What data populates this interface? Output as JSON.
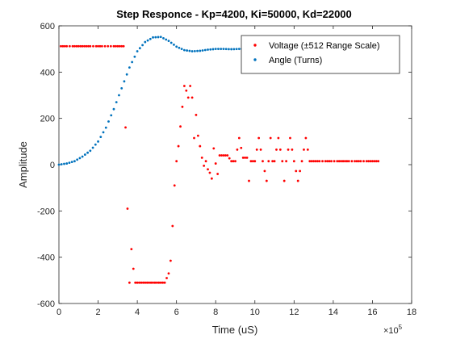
{
  "chart_data": {
    "type": "scatter",
    "title": "Step Responce - Kp=4200, Ki=50000, Kd=22000",
    "xlabel": "Time (uS)",
    "ylabel": "Amplitude",
    "x_exponent_label": "×10",
    "x_exponent_power": "5",
    "xlim": [
      0,
      18
    ],
    "ylim": [
      -600,
      600
    ],
    "x_unit_scale": 100000,
    "x_ticks": [
      "0",
      "2",
      "4",
      "6",
      "8",
      "10",
      "12",
      "14",
      "16",
      "18"
    ],
    "y_ticks": [
      "-600",
      "-400",
      "-200",
      "0",
      "200",
      "400",
      "600"
    ],
    "grid": false,
    "legend_position": "top-right",
    "series": [
      {
        "name": "Voltage (±512 Range Scale)",
        "color": "#ff0000",
        "points": [
          [
            0.1,
            512
          ],
          [
            0.4,
            512
          ],
          [
            0.7,
            512
          ],
          [
            1.0,
            512
          ],
          [
            1.3,
            512
          ],
          [
            1.6,
            512
          ],
          [
            1.9,
            512
          ],
          [
            2.2,
            512
          ],
          [
            2.5,
            512
          ],
          [
            2.8,
            512
          ],
          [
            3.1,
            512
          ],
          [
            3.3,
            512
          ],
          [
            3.5,
            -190
          ],
          [
            3.6,
            -510
          ],
          [
            3.7,
            -365
          ],
          [
            3.8,
            -450
          ],
          [
            3.9,
            -510
          ],
          [
            4.0,
            -510
          ],
          [
            4.2,
            -510
          ],
          [
            4.4,
            -510
          ],
          [
            4.6,
            -510
          ],
          [
            4.8,
            -510
          ],
          [
            5.0,
            -510
          ],
          [
            5.2,
            -510
          ],
          [
            5.4,
            -510
          ],
          [
            5.6,
            -470
          ],
          [
            5.7,
            -415
          ],
          [
            5.8,
            -265
          ],
          [
            5.9,
            -90
          ],
          [
            6.0,
            15
          ],
          [
            6.1,
            80
          ],
          [
            6.2,
            165
          ],
          [
            6.3,
            250
          ],
          [
            6.4,
            340
          ],
          [
            6.5,
            320
          ],
          [
            6.6,
            290
          ],
          [
            6.7,
            340
          ],
          [
            6.8,
            290
          ],
          [
            6.9,
            115
          ],
          [
            7.0,
            215
          ],
          [
            7.1,
            125
          ],
          [
            7.2,
            80
          ],
          [
            7.3,
            30
          ],
          [
            7.4,
            -5
          ],
          [
            7.5,
            15
          ],
          [
            7.6,
            -20
          ],
          [
            7.7,
            -35
          ],
          [
            7.8,
            -60
          ],
          [
            7.9,
            70
          ],
          [
            8.0,
            5
          ],
          [
            8.1,
            -40
          ],
          [
            8.2,
            40
          ],
          [
            8.4,
            40
          ],
          [
            8.6,
            40
          ],
          [
            8.8,
            15
          ],
          [
            9.0,
            15
          ],
          [
            9.2,
            115
          ],
          [
            9.4,
            30
          ],
          [
            9.6,
            30
          ],
          [
            9.7,
            -70
          ],
          [
            9.8,
            15
          ],
          [
            10.0,
            15
          ],
          [
            10.2,
            115
          ],
          [
            10.4,
            15
          ],
          [
            10.6,
            -70
          ],
          [
            10.7,
            15
          ],
          [
            10.8,
            115
          ],
          [
            10.9,
            15
          ],
          [
            11.0,
            15
          ],
          [
            11.2,
            115
          ],
          [
            11.4,
            15
          ],
          [
            11.5,
            -70
          ],
          [
            11.6,
            15
          ],
          [
            11.8,
            115
          ],
          [
            12.0,
            15
          ],
          [
            12.2,
            -70
          ],
          [
            12.4,
            15
          ],
          [
            12.6,
            115
          ],
          [
            12.8,
            15
          ],
          [
            13.0,
            15
          ],
          [
            13.3,
            15
          ],
          [
            13.6,
            15
          ],
          [
            13.9,
            15
          ],
          [
            14.2,
            15
          ],
          [
            14.5,
            15
          ],
          [
            14.8,
            15
          ],
          [
            15.1,
            15
          ],
          [
            15.4,
            15
          ],
          [
            15.7,
            15
          ],
          [
            16.0,
            15
          ],
          [
            16.3,
            15
          ]
        ]
      },
      {
        "name": "Angle (Turns)",
        "color": "#0072bd",
        "points": [
          [
            0.0,
            0
          ],
          [
            0.4,
            5
          ],
          [
            0.8,
            15
          ],
          [
            1.2,
            35
          ],
          [
            1.6,
            60
          ],
          [
            2.0,
            100
          ],
          [
            2.4,
            160
          ],
          [
            2.8,
            240
          ],
          [
            3.2,
            330
          ],
          [
            3.6,
            420
          ],
          [
            4.0,
            490
          ],
          [
            4.4,
            530
          ],
          [
            4.8,
            550
          ],
          [
            5.2,
            552
          ],
          [
            5.6,
            535
          ],
          [
            6.0,
            510
          ],
          [
            6.4,
            495
          ],
          [
            6.8,
            490
          ],
          [
            7.2,
            492
          ],
          [
            7.6,
            497
          ],
          [
            8.0,
            500
          ],
          [
            8.4,
            500
          ],
          [
            8.8,
            499
          ],
          [
            9.2,
            500
          ],
          [
            9.6,
            500
          ],
          [
            10.0,
            500
          ],
          [
            10.4,
            500
          ],
          [
            10.8,
            500
          ]
        ]
      }
    ]
  }
}
